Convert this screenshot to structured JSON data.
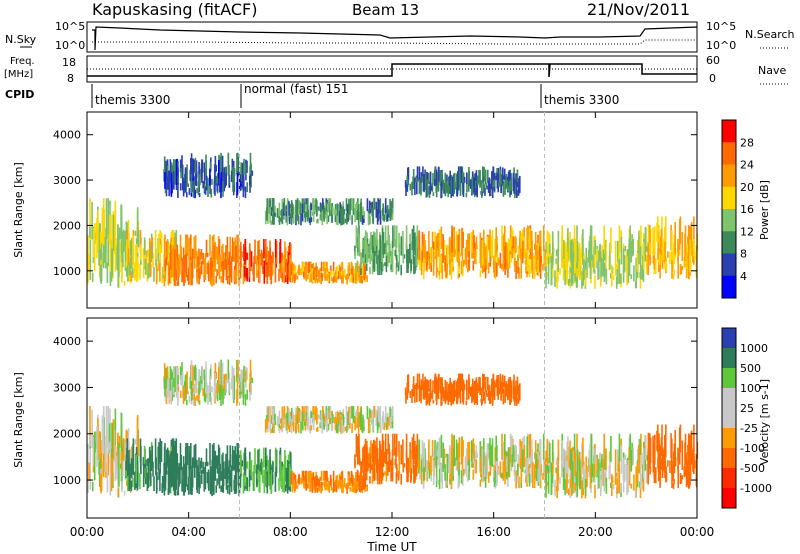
{
  "header": {
    "station": "Kapuskasing (fitACF)",
    "beam": "Beam 13",
    "date": "21/Nov/2011"
  },
  "top_panels": {
    "nsky_label": "N.Sky",
    "nsky_ticks": [
      "10^5",
      "10^0"
    ],
    "nsearch_label": "N.Search",
    "freq_label_line1": "Freq.",
    "freq_label_line2": "[MHz]",
    "freq_ticks_left": [
      "18",
      "8"
    ],
    "nave_ticks_right": [
      "60",
      "0"
    ],
    "nave_label": "Nave",
    "cpid_label": "CPID",
    "cpid_segments": [
      {
        "label": "themis 3300",
        "start_hour": 0,
        "end_hour": 6
      },
      {
        "label": "normal (fast) 151",
        "start_hour": 6,
        "end_hour": 18
      },
      {
        "label": "themis 3300",
        "start_hour": 18,
        "end_hour": 24
      }
    ]
  },
  "power_panel": {
    "ylabel": "Slant Range [km]",
    "colorbar_label": "Power [dB]",
    "colorbar_ticks": [
      "28",
      "24",
      "20",
      "16",
      "12",
      "8",
      "4"
    ],
    "colors": [
      "#ff0000",
      "#ff6a00",
      "#ff9a00",
      "#ffd700",
      "#7fc36a",
      "#3c8a5a",
      "#2a3fb0",
      "#0000ff"
    ]
  },
  "velocity_panel": {
    "ylabel": "Slant Range [km]",
    "colorbar_label": "Velocity [m s-1]",
    "colorbar_ticks": [
      "1000",
      "500",
      "100",
      "25",
      "-25",
      "-100",
      "-500",
      "-1000"
    ],
    "colors": [
      "#2a3fb0",
      "#2e7d5a",
      "#5cc83a",
      "#c8c8c8",
      "#c8c8c8",
      "#ff9a00",
      "#ff6a00",
      "#ff2a00",
      "#ff0000"
    ]
  },
  "chart_data": {
    "type": "heatmap",
    "xlabel": "Time UT",
    "x_ticks": [
      "00:00",
      "04:00",
      "08:00",
      "12:00",
      "16:00",
      "20:00",
      "00:00"
    ],
    "xlim_hours": [
      0,
      24
    ],
    "ylim_km": [
      180,
      4500
    ],
    "y_ticks": [
      1000,
      2000,
      3000,
      4000
    ],
    "power_dB_range": [
      0,
      30
    ],
    "velocity_range": [
      -1000,
      1000
    ],
    "scatter_regions": [
      {
        "hour_start": 0.0,
        "hour_end": 2.0,
        "range_start": 600,
        "range_end": 2600,
        "power_dB": 14,
        "velocity": 0
      },
      {
        "hour_start": 1.5,
        "hour_end": 3.5,
        "range_start": 700,
        "range_end": 1900,
        "power_dB": 16,
        "velocity": 150
      },
      {
        "hour_start": 3.0,
        "hour_end": 6.0,
        "range_start": 650,
        "range_end": 1800,
        "power_dB": 22,
        "velocity": 300
      },
      {
        "hour_start": 6.0,
        "hour_end": 8.0,
        "range_start": 700,
        "range_end": 1700,
        "power_dB": 24,
        "velocity": 100
      },
      {
        "hour_start": 8.0,
        "hour_end": 11.0,
        "range_start": 700,
        "range_end": 1200,
        "power_dB": 20,
        "velocity": -100
      },
      {
        "hour_start": 10.5,
        "hour_end": 13.0,
        "range_start": 900,
        "range_end": 2000,
        "power_dB": 10,
        "velocity": -150
      },
      {
        "hour_start": 13.0,
        "hour_end": 18.0,
        "range_start": 800,
        "range_end": 2000,
        "power_dB": 20,
        "velocity": 0
      },
      {
        "hour_start": 18.0,
        "hour_end": 22.0,
        "range_start": 600,
        "range_end": 2000,
        "power_dB": 14,
        "velocity": 0
      },
      {
        "hour_start": 22.0,
        "hour_end": 24.0,
        "range_start": 800,
        "range_end": 2200,
        "power_dB": 18,
        "velocity": -200
      },
      {
        "hour_start": 7.0,
        "hour_end": 12.0,
        "range_start": 2000,
        "range_end": 2600,
        "power_dB": 8,
        "velocity": 0
      },
      {
        "hour_start": 12.5,
        "hour_end": 17.0,
        "range_start": 2600,
        "range_end": 3300,
        "power_dB": 6,
        "velocity": -300
      },
      {
        "hour_start": 3.0,
        "hour_end": 6.5,
        "range_start": 2600,
        "range_end": 3600,
        "power_dB": 5,
        "velocity": 0
      }
    ]
  }
}
